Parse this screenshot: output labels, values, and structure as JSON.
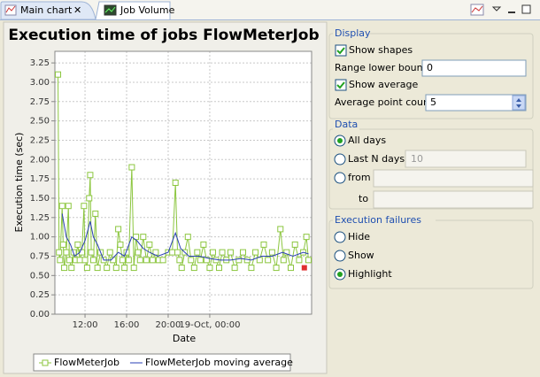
{
  "tabs": [
    "Main chart",
    "Job Volume"
  ],
  "chart_data": {
    "type": "line",
    "title": "Execution time of jobs FlowMeterJob",
    "x_label": "Date",
    "y_label": "Execution time (sec)",
    "xlim": [
      9.1,
      33.8
    ],
    "ylim": [
      0,
      3.4
    ],
    "grid": true,
    "xticks": [
      {
        "value": 12,
        "label": "12:00"
      },
      {
        "value": 16,
        "label": "16:00"
      },
      {
        "value": 20,
        "label": "20:00"
      },
      {
        "value": 24,
        "label": "19-Oct, 00:00"
      }
    ],
    "yticks": [
      {
        "value": 0,
        "label": "0.00"
      },
      {
        "value": 0.25,
        "label": "0.25"
      },
      {
        "value": 0.5,
        "label": "0.50"
      },
      {
        "value": 0.75,
        "label": "0.75"
      },
      {
        "value": 1,
        "label": "1.00"
      },
      {
        "value": 1.25,
        "label": "1.25"
      },
      {
        "value": 1.5,
        "label": "1.50"
      },
      {
        "value": 1.75,
        "label": "1.75"
      },
      {
        "value": 2,
        "label": "2.00"
      },
      {
        "value": 2.25,
        "label": "2.25"
      },
      {
        "value": 2.5,
        "label": "2.50"
      },
      {
        "value": 2.75,
        "label": "2.75"
      },
      {
        "value": 3,
        "label": "3.00"
      },
      {
        "value": 3.25,
        "label": "3.25"
      }
    ],
    "series": [
      {
        "name": "FlowMeterJob",
        "color": "#8cc63f",
        "marker": "square",
        "x": [
          9.4,
          9.5,
          9.6,
          9.8,
          9.9,
          10.0,
          10.2,
          10.4,
          10.5,
          10.7,
          10.9,
          11.1,
          11.3,
          11.5,
          11.7,
          11.9,
          12.0,
          12.2,
          12.4,
          12.5,
          12.6,
          12.8,
          13.0,
          13.2,
          13.5,
          13.8,
          14.1,
          14.4,
          14.7,
          15.0,
          15.2,
          15.4,
          15.6,
          15.8,
          16.0,
          16.2,
          16.5,
          16.7,
          16.9,
          17.1,
          17.3,
          17.6,
          17.9,
          18.2,
          18.5,
          18.8,
          19.1,
          19.5,
          20.0,
          20.4,
          20.7,
          20.9,
          21.1,
          21.3,
          21.6,
          21.9,
          22.2,
          22.5,
          22.8,
          23.1,
          23.4,
          23.7,
          24.0,
          24.3,
          24.6,
          24.9,
          25.2,
          25.6,
          26.0,
          26.4,
          26.8,
          27.2,
          27.6,
          28.0,
          28.4,
          28.8,
          29.2,
          29.6,
          30.0,
          30.4,
          30.8,
          31.1,
          31.4,
          31.8,
          32.2,
          32.6,
          33.0,
          33.3,
          33.5
        ],
        "values": [
          3.1,
          0.8,
          0.7,
          1.4,
          0.9,
          0.6,
          0.8,
          1.4,
          0.7,
          0.6,
          0.8,
          0.7,
          0.9,
          0.7,
          0.8,
          1.4,
          0.7,
          0.6,
          1.5,
          1.8,
          0.8,
          0.7,
          1.3,
          0.6,
          0.8,
          0.7,
          0.6,
          0.8,
          0.7,
          0.6,
          1.1,
          0.9,
          0.7,
          0.6,
          0.8,
          0.7,
          1.9,
          0.6,
          1.0,
          0.8,
          0.7,
          1.0,
          0.7,
          0.9,
          0.7,
          0.8,
          0.7,
          0.7,
          0.8,
          0.8,
          1.7,
          0.8,
          0.7,
          0.6,
          0.8,
          1.0,
          0.7,
          0.6,
          0.8,
          0.7,
          0.9,
          0.7,
          0.6,
          0.8,
          0.7,
          0.6,
          0.8,
          0.7,
          0.8,
          0.6,
          0.7,
          0.8,
          0.7,
          0.6,
          0.8,
          0.7,
          0.9,
          0.7,
          0.8,
          0.6,
          1.1,
          0.7,
          0.8,
          0.6,
          0.9,
          0.7,
          0.8,
          1.0,
          0.7
        ]
      },
      {
        "name": "FlowMeterJob moving average",
        "color": "#2a3fb5",
        "x": [
          9.8,
          10.2,
          10.6,
          11.0,
          11.5,
          12.0,
          12.5,
          12.8,
          13.2,
          13.8,
          14.5,
          15.2,
          15.8,
          16.5,
          17.0,
          17.6,
          18.2,
          19.0,
          20.0,
          20.7,
          21.2,
          22.0,
          23.0,
          24.0,
          25.0,
          26.0,
          27.0,
          28.0,
          29.0,
          30.0,
          31.0,
          32.0,
          33.0,
          33.5
        ],
        "values": [
          1.3,
          1.0,
          0.9,
          0.75,
          0.8,
          0.95,
          1.2,
          1.0,
          0.9,
          0.7,
          0.7,
          0.8,
          0.75,
          1.0,
          0.95,
          0.85,
          0.8,
          0.75,
          0.8,
          1.05,
          0.85,
          0.75,
          0.75,
          0.72,
          0.7,
          0.7,
          0.72,
          0.7,
          0.75,
          0.75,
          0.8,
          0.75,
          0.8,
          0.78
        ]
      }
    ],
    "failures": {
      "x": [
        33.1
      ],
      "values": [
        0.6
      ],
      "color": "#e03030"
    }
  },
  "display": {
    "title": "Display",
    "show_shapes": {
      "label": "Show shapes",
      "checked": true
    },
    "range_lower_bound": {
      "label": "Range lower bound",
      "value": "0"
    },
    "show_average": {
      "label": "Show average",
      "checked": true
    },
    "average_point_count": {
      "label": "Average point count",
      "value": "5"
    }
  },
  "data": {
    "title": "Data",
    "all_days": {
      "label": "All days",
      "selected": true
    },
    "last_n_days": {
      "label": "Last N days",
      "selected": false,
      "value": "10"
    },
    "from": {
      "label": "from",
      "selected": false
    },
    "to": {
      "label": "to"
    }
  },
  "execution_failures": {
    "title": "Execution failures",
    "options": [
      {
        "label": "Hide",
        "selected": false
      },
      {
        "label": "Show",
        "selected": false
      },
      {
        "label": "Highlight",
        "selected": true
      }
    ]
  }
}
